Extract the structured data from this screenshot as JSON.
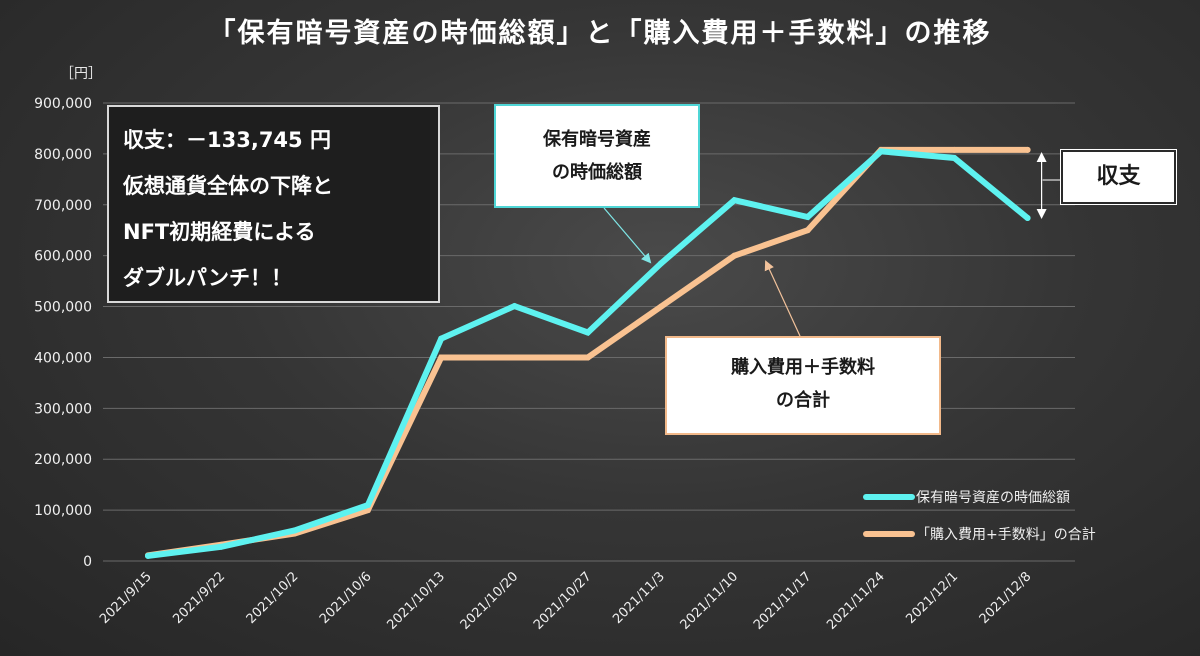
{
  "title": "「保有暗号資産の時価総額」と「購入費用＋手数料」の推移",
  "unit_label": "［円］",
  "annotations": {
    "summary_lines": [
      "収支：－133,745 円",
      "仮想通貨全体の下降と",
      "NFT初期経費による",
      "ダブルパンチ！！"
    ],
    "market_callout_lines": [
      "保有暗号資産",
      "の時価総額"
    ],
    "cost_callout_lines": [
      "購入費用＋手数料",
      "の合計"
    ],
    "balance_label": "収支"
  },
  "colors": {
    "market_series": "#5ef2f0",
    "cost_series": "#f9c291",
    "background": "#333333",
    "text": "#ffffff"
  },
  "chart_data": {
    "type": "line",
    "title": "「保有暗号資産の時価総額」と「購入費用＋手数料」の推移",
    "ylabel": "［円］",
    "ylim": [
      0,
      900000
    ],
    "yticks": [
      0,
      100000,
      200000,
      300000,
      400000,
      500000,
      600000,
      700000,
      800000,
      900000
    ],
    "ytick_labels": [
      "0",
      "100,000",
      "200,000",
      "300,000",
      "400,000",
      "500,000",
      "600,000",
      "700,000",
      "800,000",
      "900,000"
    ],
    "grid": true,
    "legend_position": "bottom-right",
    "categories": [
      "2021/9/15",
      "2021/9/22",
      "2021/10/2",
      "2021/10/6",
      "2021/10/13",
      "2021/10/20",
      "2021/10/27",
      "2021/11/3",
      "2021/11/10",
      "2021/11/17",
      "2021/11/24",
      "2021/12/1",
      "2021/12/8"
    ],
    "series": [
      {
        "name": "保有暗号資産の時価総額",
        "color": "#5ef2f0",
        "values": [
          10000,
          28000,
          60000,
          110000,
          437000,
          501000,
          449000,
          585000,
          709000,
          676000,
          805000,
          792000,
          674000
        ]
      },
      {
        "name": "「購入費用+手数料」の合計",
        "color": "#f9c291",
        "values": [
          11000,
          32000,
          54000,
          100000,
          400000,
          400000,
          400000,
          500000,
          600000,
          650000,
          808000,
          808000,
          808000
        ]
      }
    ]
  }
}
